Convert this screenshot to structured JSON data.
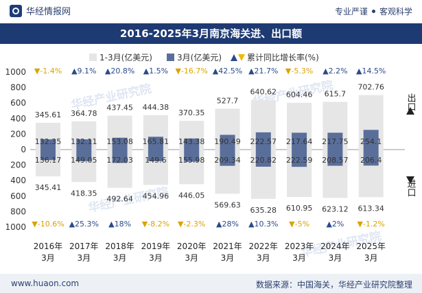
{
  "header": {
    "site_name": "华经情报网",
    "tag1": "专业严谨",
    "tag2": "客观科学"
  },
  "title": "2016-2025年3月南京海关进、出口额",
  "footer": {
    "url": "www.huaon.com",
    "source": "数据来源：中国海关，华经产业研究院整理"
  },
  "watermarks": [
    "华经产业研究院",
    "华经产业研究院",
    "华经产业研究院"
  ],
  "colors": {
    "cumulative_bar": "#e6e6e6",
    "monthly_bar": "#5a6e9a",
    "up": "#2a4a8a",
    "down": "#f2b705",
    "title_bg": "#1d3a73"
  },
  "chart_data": {
    "type": "bar",
    "title": "2016-2025年3月南京海关进、出口额",
    "categories": [
      "2016年\n3月",
      "2017年\n3月",
      "2018年\n3月",
      "2019年\n3月",
      "2020年\n3月",
      "2021年\n3月",
      "2022年\n3月",
      "2023年\n3月",
      "2024年\n3月",
      "2025年\n3月"
    ],
    "legend": [
      "1-3月(亿美元)",
      "3月(亿美元)",
      "累计同比增长率(%)"
    ],
    "side_labels": {
      "export": "出口",
      "import": "进口"
    },
    "ylim": [
      -1000,
      1000
    ],
    "yticks": [
      1000,
      800,
      600,
      400,
      200,
      0,
      200,
      400,
      600,
      800,
      1000
    ],
    "export": {
      "cumulative": [
        345.61,
        364.78,
        437.45,
        444.38,
        370.35,
        527.7,
        640.62,
        604.46,
        615.7,
        702.76
      ],
      "monthly": [
        132.35,
        132.11,
        153.08,
        165.81,
        143.38,
        190.49,
        222.57,
        217.64,
        217.75,
        254.1
      ],
      "growth": [
        "-1.4%",
        "9.1%",
        "20.8%",
        "1.5%",
        "-16.7%",
        "42.5%",
        "21.7%",
        "-5.3%",
        "2.2%",
        "14.5%"
      ]
    },
    "import": {
      "cumulative": [
        345.41,
        418.35,
        492.64,
        454.96,
        446.05,
        569.63,
        635.28,
        610.95,
        623.12,
        613.34
      ],
      "monthly": [
        136.17,
        149.05,
        172.03,
        149.6,
        155.98,
        209.34,
        220.82,
        222.59,
        208.57,
        206.4
      ],
      "growth": [
        "-10.6%",
        "25.3%",
        "18%",
        "-8.2%",
        "-2.3%",
        "28%",
        "10.3%",
        "-5%",
        "2%",
        "-1.2%"
      ]
    }
  }
}
